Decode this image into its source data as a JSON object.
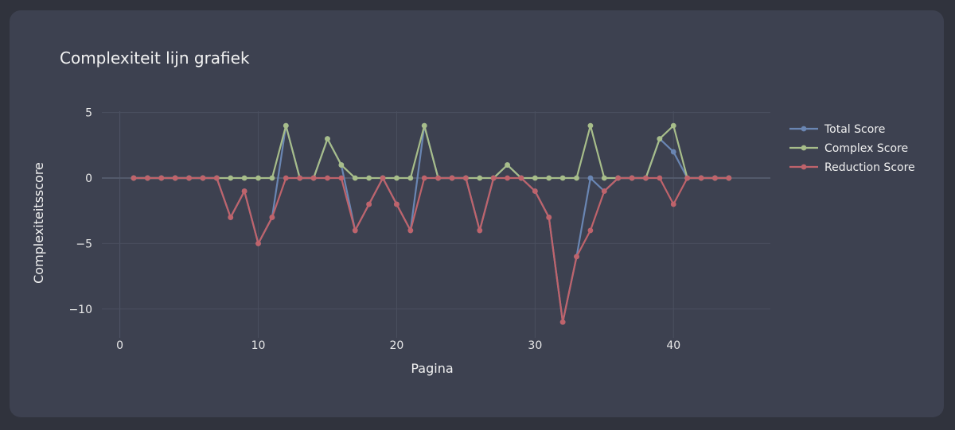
{
  "chart_data": {
    "type": "line",
    "title": "Complexiteit lijn grafiek",
    "xlabel": "Pagina",
    "ylabel": "Complexiteitsscore",
    "xlim": [
      -1.3,
      47
    ],
    "ylim": [
      -12.2,
      5.1
    ],
    "x_ticks": [
      0,
      10,
      20,
      30,
      40
    ],
    "y_ticks": [
      5,
      0,
      -5,
      -10
    ],
    "grid": true,
    "legend_position": "top-right",
    "x": [
      1,
      2,
      3,
      4,
      5,
      6,
      7,
      8,
      9,
      10,
      11,
      12,
      13,
      14,
      15,
      16,
      17,
      18,
      19,
      20,
      21,
      22,
      23,
      24,
      25,
      26,
      27,
      28,
      29,
      30,
      31,
      32,
      33,
      34,
      35,
      36,
      37,
      38,
      39,
      40,
      41,
      42,
      43,
      44
    ],
    "series": [
      {
        "name": "Total Score",
        "color": "#6a86b3",
        "values": [
          0,
          0,
          0,
          0,
          0,
          0,
          0,
          -3,
          -1,
          -5,
          -3,
          4,
          0,
          0,
          3,
          1,
          -4,
          -2,
          0,
          -2,
          -4,
          4,
          0,
          0,
          0,
          -4,
          0,
          1,
          0,
          -1,
          -3,
          -11,
          -6,
          0,
          -1,
          0,
          0,
          0,
          3,
          2,
          0,
          0,
          0,
          0
        ]
      },
      {
        "name": "Complex Score",
        "color": "#a7bd8a",
        "values": [
          0,
          0,
          0,
          0,
          0,
          0,
          0,
          0,
          0,
          0,
          0,
          4,
          0,
          0,
          3,
          1,
          0,
          0,
          0,
          0,
          0,
          4,
          0,
          0,
          0,
          0,
          0,
          1,
          0,
          0,
          0,
          0,
          0,
          4,
          0,
          0,
          0,
          0,
          3,
          4,
          0,
          0,
          0,
          0
        ]
      },
      {
        "name": "Reduction Score",
        "color": "#bf636b",
        "values": [
          0,
          0,
          0,
          0,
          0,
          0,
          0,
          -3,
          -1,
          -5,
          -3,
          0,
          0,
          0,
          0,
          0,
          -4,
          -2,
          0,
          -2,
          -4,
          0,
          0,
          0,
          0,
          -4,
          0,
          0,
          0,
          -1,
          -3,
          -11,
          -6,
          -4,
          -1,
          0,
          0,
          0,
          0,
          -2,
          0,
          0,
          0,
          0
        ]
      }
    ]
  }
}
